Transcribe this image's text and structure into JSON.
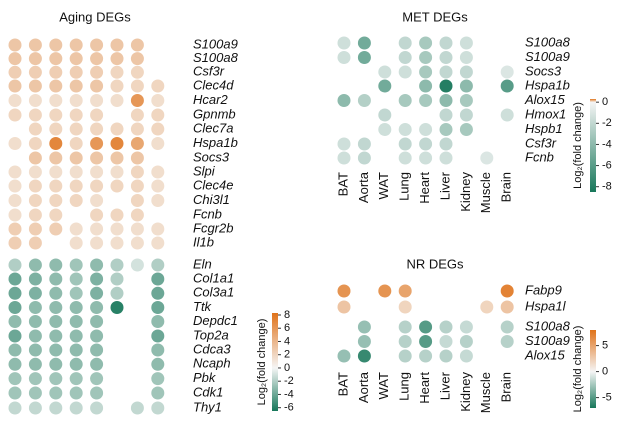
{
  "chart_data": [
    {
      "type": "dotmatrix",
      "title": "Aging DEGs",
      "categories": [
        null,
        null,
        null,
        null,
        null,
        null,
        null,
        null
      ],
      "colors": [
        "#17775a",
        "#f5f5f5",
        "#e0731a"
      ],
      "colorbar": {
        "label": "Log₂(fold change)",
        "lim": [
          -6.5,
          8.3
        ],
        "ticks": [
          8,
          6,
          4,
          2,
          0,
          -2,
          -4,
          -6
        ]
      },
      "series": [
        {
          "name": "S100a9",
          "values": [
            3,
            3,
            3,
            3,
            3,
            3,
            3,
            null
          ]
        },
        {
          "name": "S100a8",
          "values": [
            3,
            3,
            3,
            3,
            3,
            3,
            3,
            null
          ]
        },
        {
          "name": "Csf3r",
          "values": [
            2.5,
            2.5,
            2.5,
            2.5,
            2.5,
            2,
            2,
            null
          ]
        },
        {
          "name": "Clec4d",
          "values": [
            3,
            3,
            3,
            3,
            3,
            2,
            2,
            2
          ]
        },
        {
          "name": "Hcar2",
          "values": [
            1.5,
            1.5,
            1.5,
            1.5,
            1.5,
            1.5,
            6,
            1.5
          ]
        },
        {
          "name": "Gpnmb",
          "values": [
            2,
            2,
            2,
            2,
            2,
            null,
            2,
            2
          ]
        },
        {
          "name": "Clec7a",
          "values": [
            null,
            2,
            2,
            2,
            2,
            2,
            2,
            2
          ]
        },
        {
          "name": "Hspa1b",
          "values": [
            1.5,
            2,
            7,
            2,
            6,
            7,
            5,
            1.5
          ]
        },
        {
          "name": "Socs3",
          "values": [
            null,
            3,
            3,
            3,
            3,
            3,
            3,
            null
          ]
        },
        {
          "name": "Slpi",
          "values": [
            1.5,
            1.5,
            1.5,
            1.5,
            1.5,
            1.5,
            2,
            1.5
          ]
        },
        {
          "name": "Clec4e",
          "values": [
            1.5,
            2,
            2,
            2,
            2,
            2,
            2,
            1.5
          ]
        },
        {
          "name": "Chi3l1",
          "values": [
            1.5,
            2,
            2,
            2,
            1.5,
            null,
            2,
            1.5
          ]
        },
        {
          "name": "Fcnb",
          "values": [
            1.5,
            2,
            2,
            null,
            2,
            2,
            2,
            null
          ]
        },
        {
          "name": "Fcgr2b",
          "values": [
            2.5,
            2.5,
            2.5,
            1.5,
            1.5,
            1.5,
            1.5,
            1.5
          ]
        },
        {
          "name": "Il1b",
          "values": [
            2.5,
            2.5,
            null,
            1.5,
            1.5,
            1.5,
            1.5,
            1.5
          ]
        },
        {
          "name": "Eln",
          "values": [
            -2,
            -3,
            -3,
            -2.5,
            -3,
            -2,
            -1,
            -2
          ]
        },
        {
          "name": "Col1a1",
          "values": [
            -4,
            -3.5,
            -3,
            -2.5,
            -3.5,
            -2,
            null,
            -4
          ]
        },
        {
          "name": "Col3a1",
          "values": [
            -4,
            -3.5,
            -3,
            -2.5,
            -3.5,
            -2,
            null,
            -4
          ]
        },
        {
          "name": "Ttk",
          "values": [
            -4,
            -3,
            -3,
            -3,
            -3,
            -6,
            null,
            -4
          ]
        },
        {
          "name": "Depdc1",
          "values": [
            -3,
            -3,
            -3,
            -3,
            -3,
            null,
            null,
            -3
          ]
        },
        {
          "name": "Top2a",
          "values": [
            -4,
            -3,
            -3,
            -3,
            -3,
            null,
            null,
            -4
          ]
        },
        {
          "name": "Cdca3",
          "values": [
            -3,
            -3,
            -3,
            -3,
            -3,
            null,
            null,
            -3
          ]
        },
        {
          "name": "Ncaph",
          "values": [
            -3,
            -3,
            -3,
            -3,
            -3,
            null,
            null,
            -3
          ]
        },
        {
          "name": "Pbk",
          "values": [
            -2.5,
            -2.5,
            -2.5,
            -2.5,
            -2.5,
            null,
            null,
            -2.5
          ]
        },
        {
          "name": "Cdk1",
          "values": [
            -2.5,
            -2.5,
            -2.5,
            -2.5,
            -2.5,
            null,
            null,
            -2.5
          ]
        },
        {
          "name": "Thy1",
          "values": [
            -1.5,
            -1.5,
            -1.5,
            -1.5,
            -1.5,
            null,
            -1.5,
            -1.5
          ]
        }
      ]
    },
    {
      "type": "dotmatrix",
      "title": "MET DEGs",
      "categories": [
        "BAT",
        "Aorta",
        "WAT",
        "Lung",
        "Heart",
        "Liver",
        "Kidney",
        "Muscle",
        "Brain"
      ],
      "colors": [
        "#17775a",
        "#f5f5f5",
        "#e0731a"
      ],
      "colorbar": {
        "label": "Log₂(fold change)",
        "lim": [
          -8.5,
          0.3
        ],
        "ticks": [
          0,
          -2,
          -4,
          -6,
          -8
        ]
      },
      "series": [
        {
          "name": "S100a8",
          "values": [
            -1.5,
            -5,
            null,
            -2,
            -3,
            -2,
            -1.5,
            null,
            null
          ]
        },
        {
          "name": "S100a9",
          "values": [
            -1.5,
            -5,
            null,
            -2,
            -3,
            -2,
            -1.5,
            null,
            null
          ]
        },
        {
          "name": "Socs3",
          "values": [
            null,
            null,
            -1.5,
            -1.5,
            -3,
            -2,
            -2,
            null,
            -1
          ]
        },
        {
          "name": "Hspa1b",
          "values": [
            null,
            null,
            -5,
            null,
            -4,
            -8,
            -4,
            null,
            -6
          ]
        },
        {
          "name": "Alox15",
          "values": [
            -4,
            -2.5,
            null,
            -3,
            -3,
            -4,
            -3,
            null,
            null
          ]
        },
        {
          "name": "Hmox1",
          "values": [
            null,
            null,
            -2,
            null,
            null,
            -2,
            -2,
            null,
            -1.5
          ]
        },
        {
          "name": "Hspb1",
          "values": [
            null,
            null,
            -1.5,
            -1.5,
            -1.5,
            -3,
            -3,
            null,
            null
          ]
        },
        {
          "name": "Csf3r",
          "values": [
            -1.5,
            -2,
            null,
            -2,
            -2,
            -2,
            null,
            null,
            null
          ]
        },
        {
          "name": "Fcnb",
          "values": [
            -1.5,
            -2,
            null,
            -1.5,
            -1.5,
            -1.5,
            null,
            -1,
            null
          ]
        }
      ]
    },
    {
      "type": "dotmatrix",
      "title": "NR DEGs",
      "categories": [
        "BAT",
        "Aorta",
        "WAT",
        "Lung",
        "Heart",
        "Liver",
        "Kidney",
        "Muscle",
        "Brain"
      ],
      "colors": [
        "#17775a",
        "#f5f5f5",
        "#e0731a"
      ],
      "colorbar": {
        "label": "Log₂(fold change)",
        "lim": [
          -7,
          8
        ],
        "ticks": [
          5,
          0,
          -5
        ]
      },
      "series": [
        {
          "name": "Fabp9",
          "values": [
            6,
            null,
            6,
            5,
            null,
            null,
            null,
            null,
            7
          ]
        },
        {
          "name": "Hspa1l",
          "values": [
            3,
            null,
            null,
            2,
            null,
            null,
            null,
            2,
            3
          ]
        },
        {
          "name": "S100a8",
          "values": [
            null,
            -3,
            null,
            -2,
            -5,
            -2,
            -1.5,
            null,
            -2
          ]
        },
        {
          "name": "S100a9",
          "values": [
            null,
            -3,
            null,
            -2,
            -5,
            -1.5,
            -2,
            null,
            -2
          ]
        },
        {
          "name": "Alox15",
          "values": [
            -3,
            -6,
            null,
            -2,
            -2,
            -2,
            -1.5,
            null,
            null
          ]
        }
      ]
    }
  ]
}
